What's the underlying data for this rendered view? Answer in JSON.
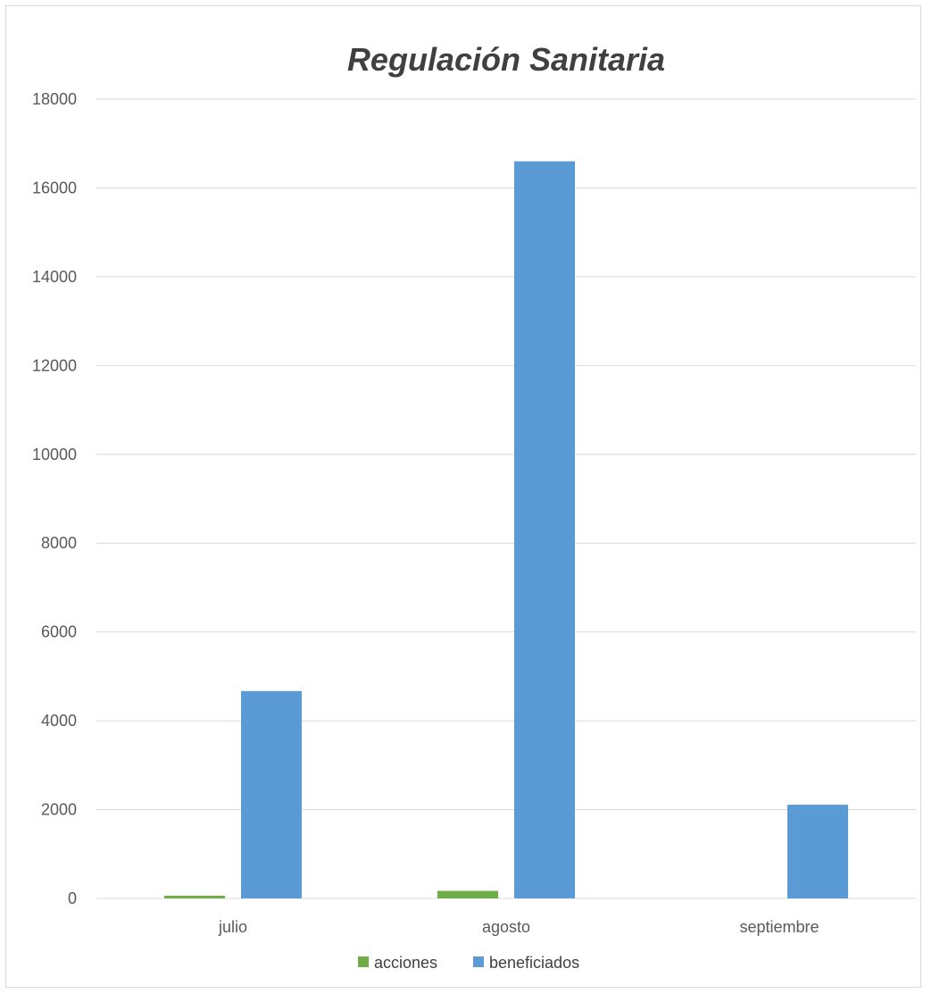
{
  "chart_data": {
    "type": "bar",
    "title": "Regulación Sanitaria",
    "categories": [
      "julio",
      "agosto",
      "septiembre"
    ],
    "series": [
      {
        "name": "acciones",
        "values": [
          60,
          170,
          0
        ],
        "color": "#70ad47"
      },
      {
        "name": "beneficiados",
        "values": [
          4670,
          16600,
          2110
        ],
        "color": "#5b9bd5"
      }
    ],
    "ylim": [
      0,
      18000
    ],
    "yticks": [
      0,
      2000,
      4000,
      6000,
      8000,
      10000,
      12000,
      14000,
      16000,
      18000
    ],
    "grid": true,
    "legend": "bottom",
    "xlabel": "",
    "ylabel": ""
  }
}
